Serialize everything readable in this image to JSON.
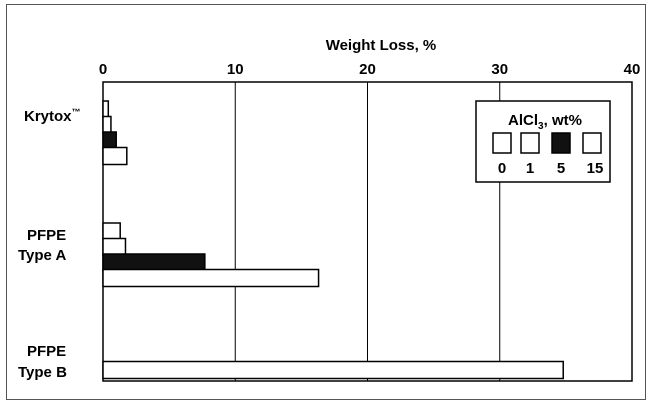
{
  "chart_data": {
    "type": "bar",
    "orientation": "horizontal",
    "xlabel": "Weight Loss, %",
    "xlim": [
      0,
      40
    ],
    "xticks": [
      0,
      10,
      20,
      30,
      40
    ],
    "grid": true,
    "categories": [
      {
        "lines": [
          "Krytox",
          "™"
        ],
        "display": "Krytox™"
      },
      {
        "lines": [
          "PFPE",
          "Type A"
        ],
        "display": "PFPE Type A"
      },
      {
        "lines": [
          "PFPE",
          "Type B"
        ],
        "display": "PFPE Type B"
      }
    ],
    "legend": {
      "title_main": "AlCl",
      "title_sub": "3",
      "title_rest": ", wt%",
      "placement": "top-right"
    },
    "series": [
      {
        "name": "0",
        "fill": "#ffffff",
        "values": [
          0.4,
          1.3,
          0
        ]
      },
      {
        "name": "1",
        "fill": "#ffffff",
        "values": [
          0.6,
          1.7,
          34.8
        ]
      },
      {
        "name": "5",
        "fill": "#111111",
        "values": [
          1.0,
          7.7,
          0
        ]
      },
      {
        "name": "15",
        "fill": "#ffffff",
        "values": [
          1.8,
          16.3,
          0
        ]
      }
    ]
  }
}
